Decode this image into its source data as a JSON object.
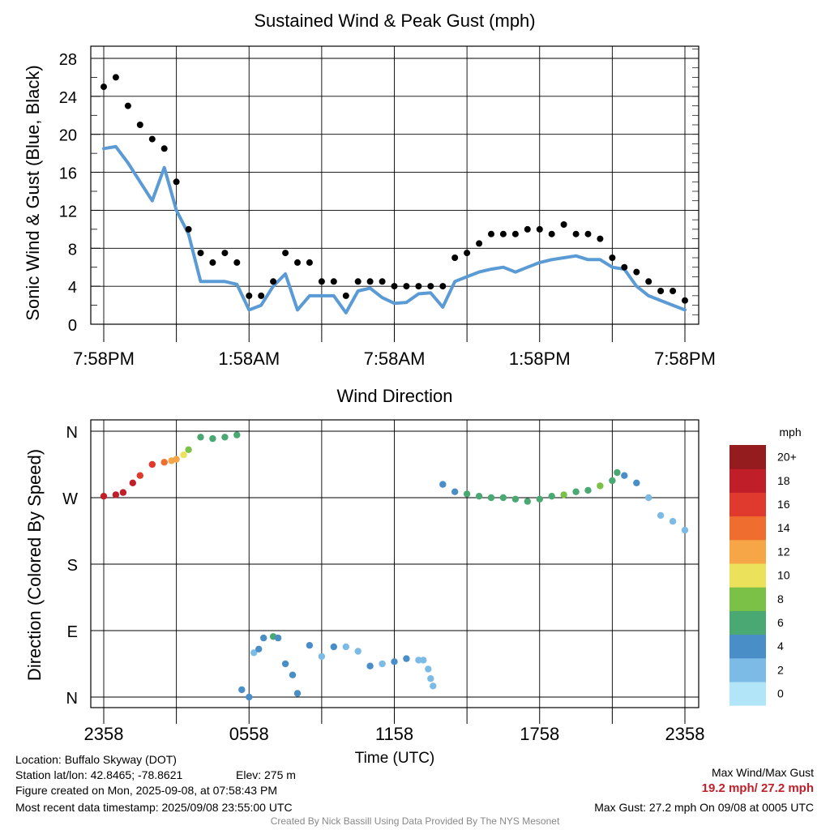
{
  "colors": {
    "sustained": "#5b9bd5",
    "gust": "#000000",
    "accent_red": "#c0202a",
    "scale": [
      "#b3e5f8",
      "#7bbbe6",
      "#4a8ec8",
      "#4aa972",
      "#7bc047",
      "#ece15b",
      "#f6a646",
      "#ef6d2e",
      "#e03a2e",
      "#c01f2a",
      "#941b1e"
    ]
  },
  "top_chart": {
    "title": "Sustained Wind & Peak Gust (mph)",
    "ylabel": "Sonic Wind & Gust (Blue, Black)",
    "yticks": [
      "0",
      "4",
      "8",
      "12",
      "16",
      "20",
      "24",
      "28"
    ],
    "xticks": [
      "7:58PM",
      "1:58AM",
      "7:58AM",
      "1:58PM",
      "7:58PM"
    ]
  },
  "bottom_chart": {
    "title": "Wind Direction",
    "ylabel": "Direction (Colored By Speed)",
    "xlabel": "Time (UTC)",
    "yticks": [
      "N",
      "E",
      "S",
      "W",
      "N"
    ],
    "xticks": [
      "2358",
      "0558",
      "1158",
      "1758",
      "2358"
    ]
  },
  "colorbar": {
    "title": "mph",
    "labels": [
      "0",
      "2",
      "4",
      "6",
      "8",
      "10",
      "12",
      "14",
      "16",
      "18",
      "20+"
    ]
  },
  "footer": {
    "location": "Location: Buffalo Skyway (DOT)",
    "latlon": "Station lat/lon: 42.8465; -78.8621",
    "elev": "Elev: 275 m",
    "created": "Figure created on Mon, 2025-09-08, at 07:58:43 PM",
    "recent": "Most recent data timestamp: 2025/09/08 23:55:00 UTC",
    "max_label": "Max Wind/Max Gust",
    "max_values": "19.2 mph/ 27.2 mph",
    "max_gust": "Max Gust: 27.2 mph On 09/08 at 0005 UTC",
    "credit": "Created By Nick Bassill Using Data Provided By The NYS Mesonet"
  },
  "chart_data": [
    {
      "type": "line",
      "title": "Sustained Wind & Peak Gust (mph)",
      "xlabel": "",
      "ylabel": "Sonic Wind & Gust (Blue, Black)",
      "x_unit": "hours since 7:58PM",
      "xlim": [
        0,
        24
      ],
      "ylim": [
        0,
        29
      ],
      "series": [
        {
          "name": "Blue",
          "x": [
            0,
            0.5,
            1,
            1.5,
            2,
            2.5,
            3,
            3.5,
            4,
            4.5,
            5,
            5.5,
            6,
            6.5,
            7,
            7.5,
            8,
            8.5,
            9,
            9.5,
            10,
            10.5,
            11,
            11.5,
            12,
            12.5,
            13,
            13.5,
            14,
            14.5,
            15,
            15.5,
            16,
            16.5,
            17,
            17.5,
            18,
            18.5,
            19,
            19.5,
            20,
            20.5,
            21,
            21.5,
            22,
            22.5,
            23,
            23.5,
            24
          ],
          "values": [
            18.5,
            18.7,
            17,
            15,
            13,
            16.5,
            12,
            9.5,
            4.5,
            4.5,
            4.5,
            4.2,
            1.5,
            2,
            4,
            5.3,
            1.5,
            3,
            3,
            3,
            1.2,
            3.5,
            3.8,
            2.8,
            2.2,
            2.3,
            3.2,
            3.3,
            1.8,
            4.5,
            5,
            5.5,
            5.8,
            6,
            5.5,
            6,
            6.5,
            6.8,
            7,
            7.2,
            6.8,
            6.8,
            6,
            5.8,
            4,
            3,
            2.5,
            2,
            1.5
          ]
        },
        {
          "name": "Black",
          "x": [
            0,
            0.5,
            1,
            1.5,
            2,
            2.5,
            3,
            3.5,
            4,
            4.5,
            5,
            5.5,
            6,
            6.5,
            7,
            7.5,
            8,
            8.5,
            9,
            9.5,
            10,
            10.5,
            11,
            11.5,
            12,
            12.5,
            13,
            13.5,
            14,
            14.5,
            15,
            15.5,
            16,
            16.5,
            17,
            17.5,
            18,
            18.5,
            19,
            19.5,
            20,
            20.5,
            21,
            21.5,
            22,
            22.5,
            23,
            23.5,
            24
          ],
          "values": [
            25,
            26,
            23,
            21,
            19.5,
            18.5,
            15,
            10,
            7.5,
            6.5,
            7.5,
            6.5,
            3,
            3,
            4.5,
            7.5,
            6.5,
            6.5,
            4.5,
            4.5,
            3,
            4.5,
            4.5,
            4.5,
            4,
            4,
            4,
            4,
            4,
            7,
            7.5,
            8.5,
            9.5,
            9.5,
            9.5,
            10,
            10,
            9.5,
            10.5,
            9.5,
            9.5,
            9,
            7,
            6,
            5.5,
            4.5,
            3.5,
            3.5,
            2.5
          ]
        }
      ]
    },
    {
      "type": "scatter",
      "title": "Wind Direction",
      "xlabel": "Time (UTC)",
      "ylabel": "Direction (Colored By Speed)",
      "x_unit": "hours since 2358 UTC",
      "xlim": [
        0,
        24
      ],
      "ylim": [
        0,
        360
      ],
      "x": [
        0,
        0.5,
        0.8,
        1.2,
        1.5,
        2,
        2.5,
        2.8,
        3,
        3.3,
        3.5,
        4,
        4.5,
        5,
        5.5,
        5.7,
        6,
        6.2,
        6.4,
        6.6,
        7,
        7.2,
        7.5,
        7.8,
        8,
        8.5,
        9,
        9.5,
        10,
        10.5,
        11,
        11.5,
        12,
        12.5,
        13,
        13.2,
        13.4,
        13.5,
        13.6,
        14,
        14.5,
        15,
        15.5,
        16,
        16.5,
        17,
        17.5,
        18,
        18.5,
        19,
        19.5,
        20,
        20.5,
        21,
        21.2,
        21.5,
        22,
        22.5,
        23,
        23.5,
        24
      ],
      "values": [
        272,
        274,
        277,
        290,
        300,
        315,
        318,
        320,
        322,
        328,
        335,
        352,
        350,
        352,
        355,
        10,
        -2,
        60,
        65,
        80,
        82,
        80,
        45,
        30,
        5,
        70,
        55,
        68,
        68,
        62,
        42,
        45,
        48,
        52,
        50,
        50,
        38,
        25,
        15,
        288,
        278,
        275,
        272,
        270,
        270,
        268,
        265,
        268,
        272,
        274,
        278,
        280,
        286,
        293,
        304,
        300,
        290,
        270,
        246,
        238,
        226
      ],
      "speeds": [
        17,
        18,
        17,
        17,
        16,
        15,
        13,
        12,
        11,
        10,
        8,
        6,
        5,
        6,
        5,
        4,
        4,
        2,
        3,
        3,
        6,
        4,
        3,
        3,
        3,
        4,
        2,
        3,
        2,
        2,
        3,
        2,
        3,
        3,
        2,
        2,
        2,
        1,
        1,
        4,
        4,
        5,
        6,
        6,
        6,
        6,
        6,
        6,
        6,
        7,
        6,
        6,
        7,
        6,
        6,
        4,
        3,
        2,
        2,
        1,
        1
      ]
    }
  ]
}
